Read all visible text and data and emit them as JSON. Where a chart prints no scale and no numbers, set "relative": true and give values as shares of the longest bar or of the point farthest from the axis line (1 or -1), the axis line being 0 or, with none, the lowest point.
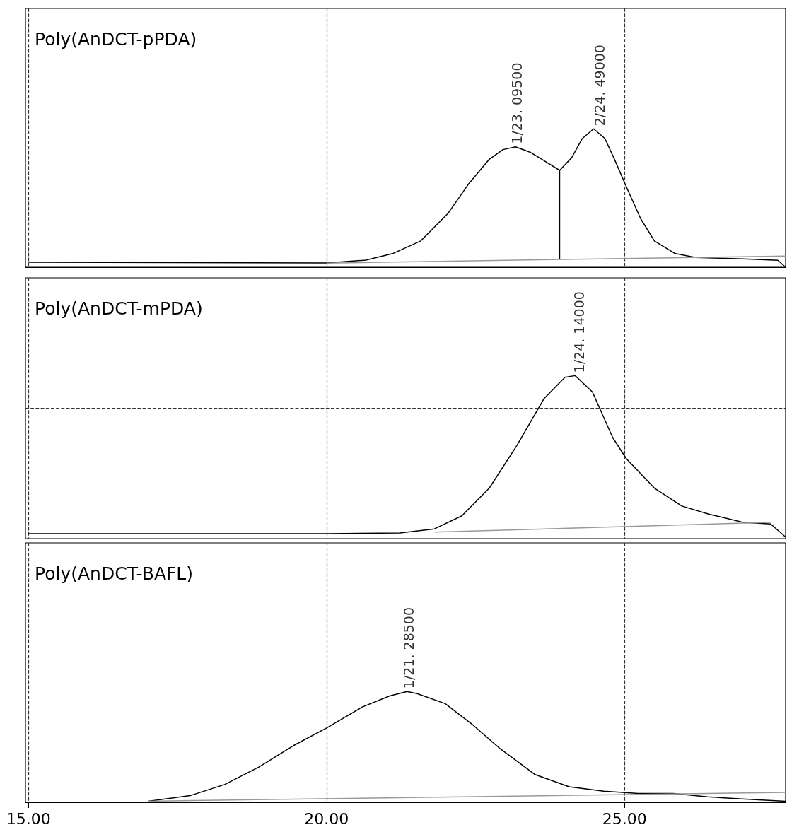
{
  "chart_data": [
    {
      "type": "line",
      "title": "Poly(AnDCT-pPDA)",
      "relative": true,
      "xlim": [
        14.95,
        27.7
      ],
      "xticks": [
        15,
        20,
        25
      ],
      "tick_labels": false,
      "grid": "x",
      "marker": "none",
      "line_style": "solid",
      "series": [
        {
          "color": "#000000",
          "x": [
            15.0,
            20,
            20.66,
            21.12,
            21.58,
            22.04,
            22.38,
            22.73,
            22.96,
            23.17,
            23.42,
            23.65,
            23.91,
            24.11,
            24.29,
            24.48,
            24.67,
            24.83,
            25.03,
            25.27,
            25.5,
            25.84,
            26.19,
            26.99,
            27.57,
            27.7
          ],
          "values": [
            0.036,
            0.031,
            0.051,
            0.1,
            0.19,
            0.39,
            0.6,
            0.78,
            0.85,
            0.87,
            0.83,
            0.77,
            0.7,
            0.79,
            0.93,
            1.0,
            0.93,
            0.78,
            0.58,
            0.35,
            0.19,
            0.1,
            0.07,
            0.06,
            0.05,
            0.0
          ]
        },
        {
          "color": "#999999",
          "x": [
            20,
            27.7
          ],
          "values": [
            0.03,
            0.08
          ]
        },
        {
          "color": "#000000",
          "x": [
            23.91,
            23.91
          ],
          "values": [
            0.056,
            0.7
          ]
        }
      ],
      "ref_lines": [
        {
          "axis": "y",
          "value": 0.93,
          "color": "#333333",
          "line_style": "dashed"
        }
      ],
      "annotations": [
        {
          "text": "1/23. 09500",
          "x": 23.095,
          "y": 0.87
        },
        {
          "text": "2/24. 49000",
          "x": 24.49,
          "y": 1.0
        }
      ]
    },
    {
      "type": "line",
      "title": "Poly(AnDCT-mPDA)",
      "relative": true,
      "xlim": [
        14.95,
        27.7
      ],
      "xticks": [
        15,
        20,
        25
      ],
      "tick_labels": false,
      "grid": "x",
      "marker": "none",
      "line_style": "solid",
      "series": [
        {
          "color": "#000000",
          "x": [
            15.0,
            20,
            21.23,
            21.81,
            22.27,
            22.73,
            23.19,
            23.65,
            24.0,
            24.17,
            24.46,
            24.8,
            25.03,
            25.5,
            25.96,
            26.42,
            26.99,
            27.45,
            27.7
          ],
          "values": [
            0.03,
            0.03,
            0.035,
            0.06,
            0.14,
            0.31,
            0.57,
            0.86,
            0.99,
            1.0,
            0.9,
            0.62,
            0.49,
            0.31,
            0.2,
            0.15,
            0.1,
            0.09,
            0.01
          ]
        },
        {
          "color": "#999999",
          "x": [
            21.81,
            27.45
          ],
          "values": [
            0.04,
            0.1
          ]
        }
      ],
      "ref_lines": [
        {
          "axis": "y",
          "value": 0.8,
          "color": "#333333",
          "line_style": "dashed"
        }
      ],
      "annotations": [
        {
          "text": "1/24. 14000",
          "x": 24.14,
          "y": 1.0
        }
      ]
    },
    {
      "type": "line",
      "title": "Poly(AnDCT-BAFL)",
      "relative": true,
      "xlim": [
        14.95,
        27.7
      ],
      "xticks": [
        {
          "value": 15,
          "label": "15.00"
        },
        {
          "value": 20,
          "label": "20.00"
        },
        {
          "value": 25,
          "label": "25.00"
        }
      ],
      "grid": "x",
      "marker": "none",
      "line_style": "solid",
      "series": [
        {
          "color": "#000000",
          "x": [
            17.01,
            17.71,
            18.29,
            18.87,
            19.44,
            20.0,
            20.6,
            21.06,
            21.35,
            21.52,
            21.99,
            22.45,
            22.92,
            23.5,
            24.07,
            24.65,
            25.23,
            25.81,
            26.39,
            26.97,
            27.7
          ],
          "values": [
            0.01,
            0.06,
            0.16,
            0.32,
            0.51,
            0.67,
            0.86,
            0.96,
            1.0,
            0.98,
            0.89,
            0.7,
            0.48,
            0.25,
            0.14,
            0.1,
            0.08,
            0.08,
            0.05,
            0.03,
            0.01
          ]
        },
        {
          "color": "#999999",
          "x": [
            17.01,
            27.7
          ],
          "values": [
            0.01,
            0.09
          ]
        }
      ],
      "ref_lines": [
        {
          "axis": "y",
          "value": 1.16,
          "color": "#333333",
          "line_style": "dashed"
        }
      ],
      "annotations": [
        {
          "text": "1/21. 28500",
          "x": 21.285,
          "y": 1.0
        }
      ]
    }
  ]
}
